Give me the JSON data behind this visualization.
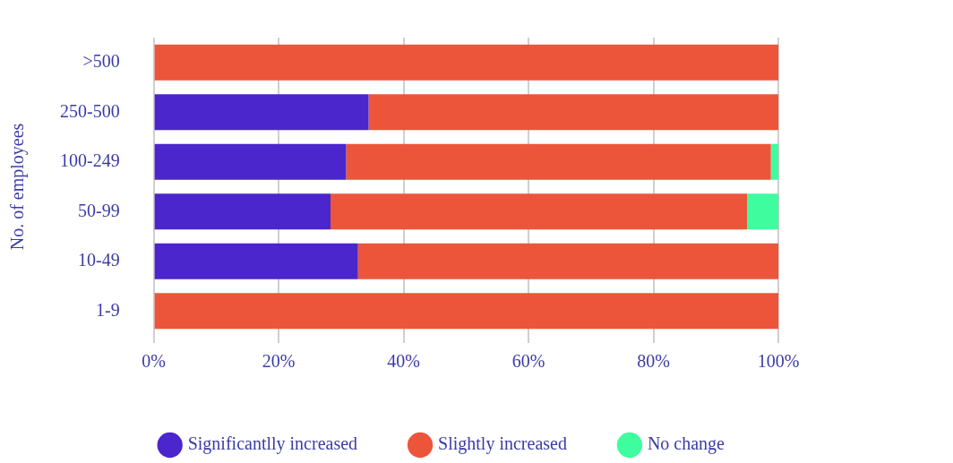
{
  "chart_data": {
    "type": "bar",
    "orientation": "horizontal",
    "stacked": true,
    "ylabel": "No. of employees",
    "categories": [
      ">500",
      "250-500",
      "100-249",
      "50-99",
      "10-49",
      "1-9"
    ],
    "series": [
      {
        "name": "Significantlly increased",
        "color": "#4a26cc",
        "values": [
          0,
          34.4,
          30.8,
          28.3,
          32.7,
          0
        ]
      },
      {
        "name": "Slightly increased",
        "color": "#ec553a",
        "values": [
          100,
          65.6,
          68.0,
          66.7,
          67.3,
          100
        ]
      },
      {
        "name": "No change",
        "color": "#3dfd9f",
        "values": [
          0,
          0,
          1.2,
          5.0,
          0,
          0
        ]
      }
    ],
    "xlim": [
      0,
      100
    ],
    "xticks": [
      {
        "value": 0,
        "label": "0%"
      },
      {
        "value": 20,
        "label": "20%"
      },
      {
        "value": 40,
        "label": "40%"
      },
      {
        "value": 60,
        "label": "60%"
      },
      {
        "value": 80,
        "label": "80%"
      },
      {
        "value": 100,
        "label": "100%"
      }
    ],
    "grid": "x",
    "legend": "bottom"
  }
}
